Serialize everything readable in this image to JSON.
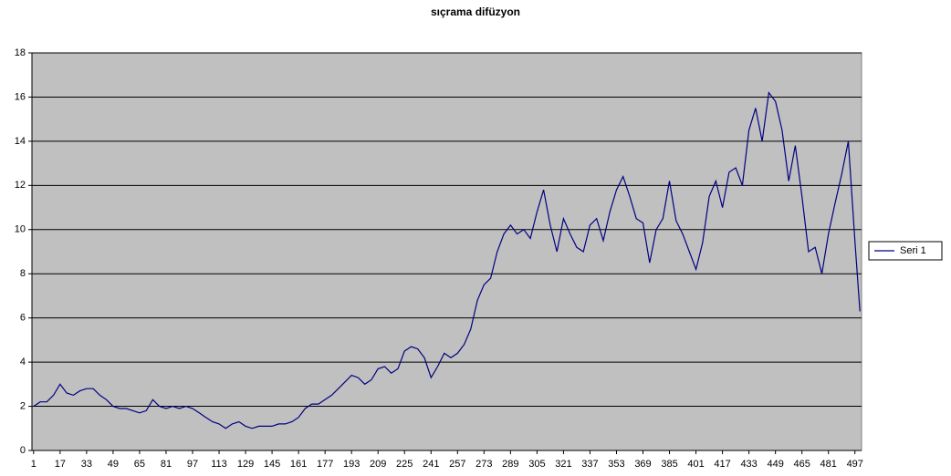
{
  "chart_data": {
    "type": "line",
    "title": "sıçrama difüzyon",
    "x": [
      1,
      5,
      9,
      13,
      17,
      21,
      25,
      29,
      33,
      37,
      41,
      45,
      49,
      53,
      57,
      61,
      65,
      69,
      73,
      77,
      81,
      85,
      89,
      93,
      97,
      101,
      105,
      109,
      113,
      117,
      121,
      125,
      129,
      133,
      137,
      141,
      145,
      149,
      153,
      157,
      161,
      165,
      169,
      173,
      177,
      181,
      185,
      189,
      193,
      197,
      201,
      205,
      209,
      213,
      217,
      221,
      225,
      229,
      233,
      237,
      241,
      245,
      249,
      253,
      257,
      261,
      265,
      269,
      273,
      277,
      281,
      285,
      289,
      293,
      297,
      301,
      305,
      309,
      313,
      317,
      321,
      325,
      329,
      333,
      337,
      341,
      345,
      349,
      353,
      357,
      361,
      365,
      369,
      373,
      377,
      381,
      385,
      389,
      393,
      397,
      401,
      405,
      409,
      413,
      417,
      421,
      425,
      429,
      433,
      437,
      441,
      445,
      449,
      453,
      457,
      461,
      465,
      469,
      473,
      477,
      481,
      485,
      489,
      493,
      497,
      500
    ],
    "series": [
      {
        "name": "Seri 1",
        "color": "#000080",
        "values": [
          2.0,
          2.2,
          2.2,
          2.5,
          3.0,
          2.6,
          2.5,
          2.7,
          2.8,
          2.8,
          2.5,
          2.3,
          2.0,
          1.9,
          1.9,
          1.8,
          1.7,
          1.8,
          2.3,
          2.0,
          1.9,
          2.0,
          1.9,
          2.0,
          1.9,
          1.7,
          1.5,
          1.3,
          1.2,
          1.0,
          1.2,
          1.3,
          1.1,
          1.0,
          1.1,
          1.1,
          1.1,
          1.2,
          1.2,
          1.3,
          1.5,
          1.9,
          2.1,
          2.1,
          2.3,
          2.5,
          2.8,
          3.1,
          3.4,
          3.3,
          3.0,
          3.2,
          3.7,
          3.8,
          3.5,
          3.7,
          4.5,
          4.7,
          4.6,
          4.2,
          3.3,
          3.8,
          4.4,
          4.2,
          4.4,
          4.8,
          5.5,
          6.8,
          7.5,
          7.8,
          9.0,
          9.8,
          10.2,
          9.8,
          10.0,
          9.6,
          10.8,
          11.8,
          10.2,
          9.0,
          10.5,
          9.8,
          9.2,
          9.0,
          10.2,
          10.5,
          9.5,
          10.8,
          11.8,
          12.4,
          11.5,
          10.5,
          10.3,
          8.5,
          10.0,
          10.5,
          12.2,
          10.4,
          9.8,
          9.0,
          8.2,
          9.4,
          11.5,
          12.2,
          11.0,
          12.6,
          12.8,
          12.0,
          14.5,
          15.5,
          14.0,
          16.2,
          15.8,
          14.5,
          12.2,
          13.8,
          11.5,
          9.0,
          9.2,
          8.0,
          9.8,
          11.2,
          12.5,
          14.0,
          9.5,
          6.3
        ]
      }
    ],
    "xlim": [
      0,
      501
    ],
    "xticks": [
      1,
      17,
      33,
      49,
      65,
      81,
      97,
      113,
      129,
      145,
      161,
      177,
      193,
      209,
      225,
      241,
      257,
      273,
      289,
      305,
      321,
      337,
      353,
      369,
      385,
      401,
      417,
      433,
      449,
      465,
      481,
      497
    ],
    "ylim": [
      0,
      18
    ],
    "yticks": [
      0,
      2,
      4,
      6,
      8,
      10,
      12,
      14,
      16,
      18
    ],
    "grid": true,
    "legend": "right"
  }
}
